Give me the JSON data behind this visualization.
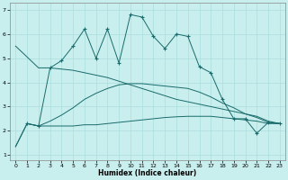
{
  "xlabel": "Humidex (Indice chaleur)",
  "bg_color": "#c8eeee",
  "grid_color": "#aadddd",
  "line_color": "#1a6b6b",
  "xlim": [
    -0.5,
    23.5
  ],
  "ylim": [
    0.8,
    7.3
  ],
  "xticks": [
    0,
    1,
    2,
    3,
    4,
    5,
    6,
    7,
    8,
    9,
    10,
    11,
    12,
    13,
    14,
    15,
    16,
    17,
    18,
    19,
    20,
    21,
    22,
    23
  ],
  "yticks": [
    1,
    2,
    3,
    4,
    5,
    6,
    7
  ],
  "line_flat_x": [
    0,
    1,
    2,
    3,
    4,
    5,
    6,
    7,
    8,
    9,
    10,
    11,
    12,
    13,
    14,
    15,
    16,
    17,
    18,
    19,
    20,
    21,
    22,
    23
  ],
  "line_flat_y": [
    1.35,
    2.3,
    2.2,
    2.2,
    2.2,
    2.2,
    2.25,
    2.25,
    2.3,
    2.35,
    2.4,
    2.45,
    2.5,
    2.55,
    2.58,
    2.6,
    2.6,
    2.6,
    2.55,
    2.5,
    2.45,
    2.4,
    2.3,
    2.3
  ],
  "line_ascend_x": [
    0,
    1,
    2,
    3,
    4,
    5,
    6,
    7,
    8,
    9,
    10,
    11,
    12,
    13,
    14,
    15,
    16,
    17,
    18,
    19,
    20,
    21,
    22,
    23
  ],
  "line_ascend_y": [
    1.35,
    2.3,
    2.2,
    2.4,
    2.65,
    2.95,
    3.3,
    3.55,
    3.75,
    3.9,
    3.95,
    3.95,
    3.9,
    3.85,
    3.8,
    3.75,
    3.6,
    3.4,
    3.15,
    2.95,
    2.7,
    2.55,
    2.35,
    2.3
  ],
  "line_descend_x": [
    0,
    2,
    3,
    4,
    5,
    6,
    7,
    8,
    9,
    10,
    11,
    12,
    13,
    14,
    15,
    16,
    17,
    18,
    19,
    20,
    21,
    22,
    23
  ],
  "line_descend_y": [
    5.5,
    4.6,
    4.6,
    4.55,
    4.5,
    4.4,
    4.3,
    4.2,
    4.05,
    3.9,
    3.75,
    3.6,
    3.45,
    3.3,
    3.2,
    3.1,
    3.0,
    2.9,
    2.8,
    2.7,
    2.6,
    2.4,
    2.3
  ],
  "line_jagged_x": [
    1,
    2,
    3,
    4,
    5,
    6,
    7,
    8,
    9,
    10,
    11,
    12,
    13,
    14,
    15,
    16,
    17,
    18,
    19,
    20,
    21,
    22,
    23
  ],
  "line_jagged_y": [
    2.3,
    2.2,
    4.6,
    4.9,
    5.5,
    6.2,
    5.0,
    6.2,
    4.8,
    6.8,
    6.7,
    5.9,
    5.4,
    6.0,
    5.9,
    4.65,
    4.4,
    3.3,
    2.5,
    2.5,
    1.9,
    2.35,
    2.3
  ]
}
